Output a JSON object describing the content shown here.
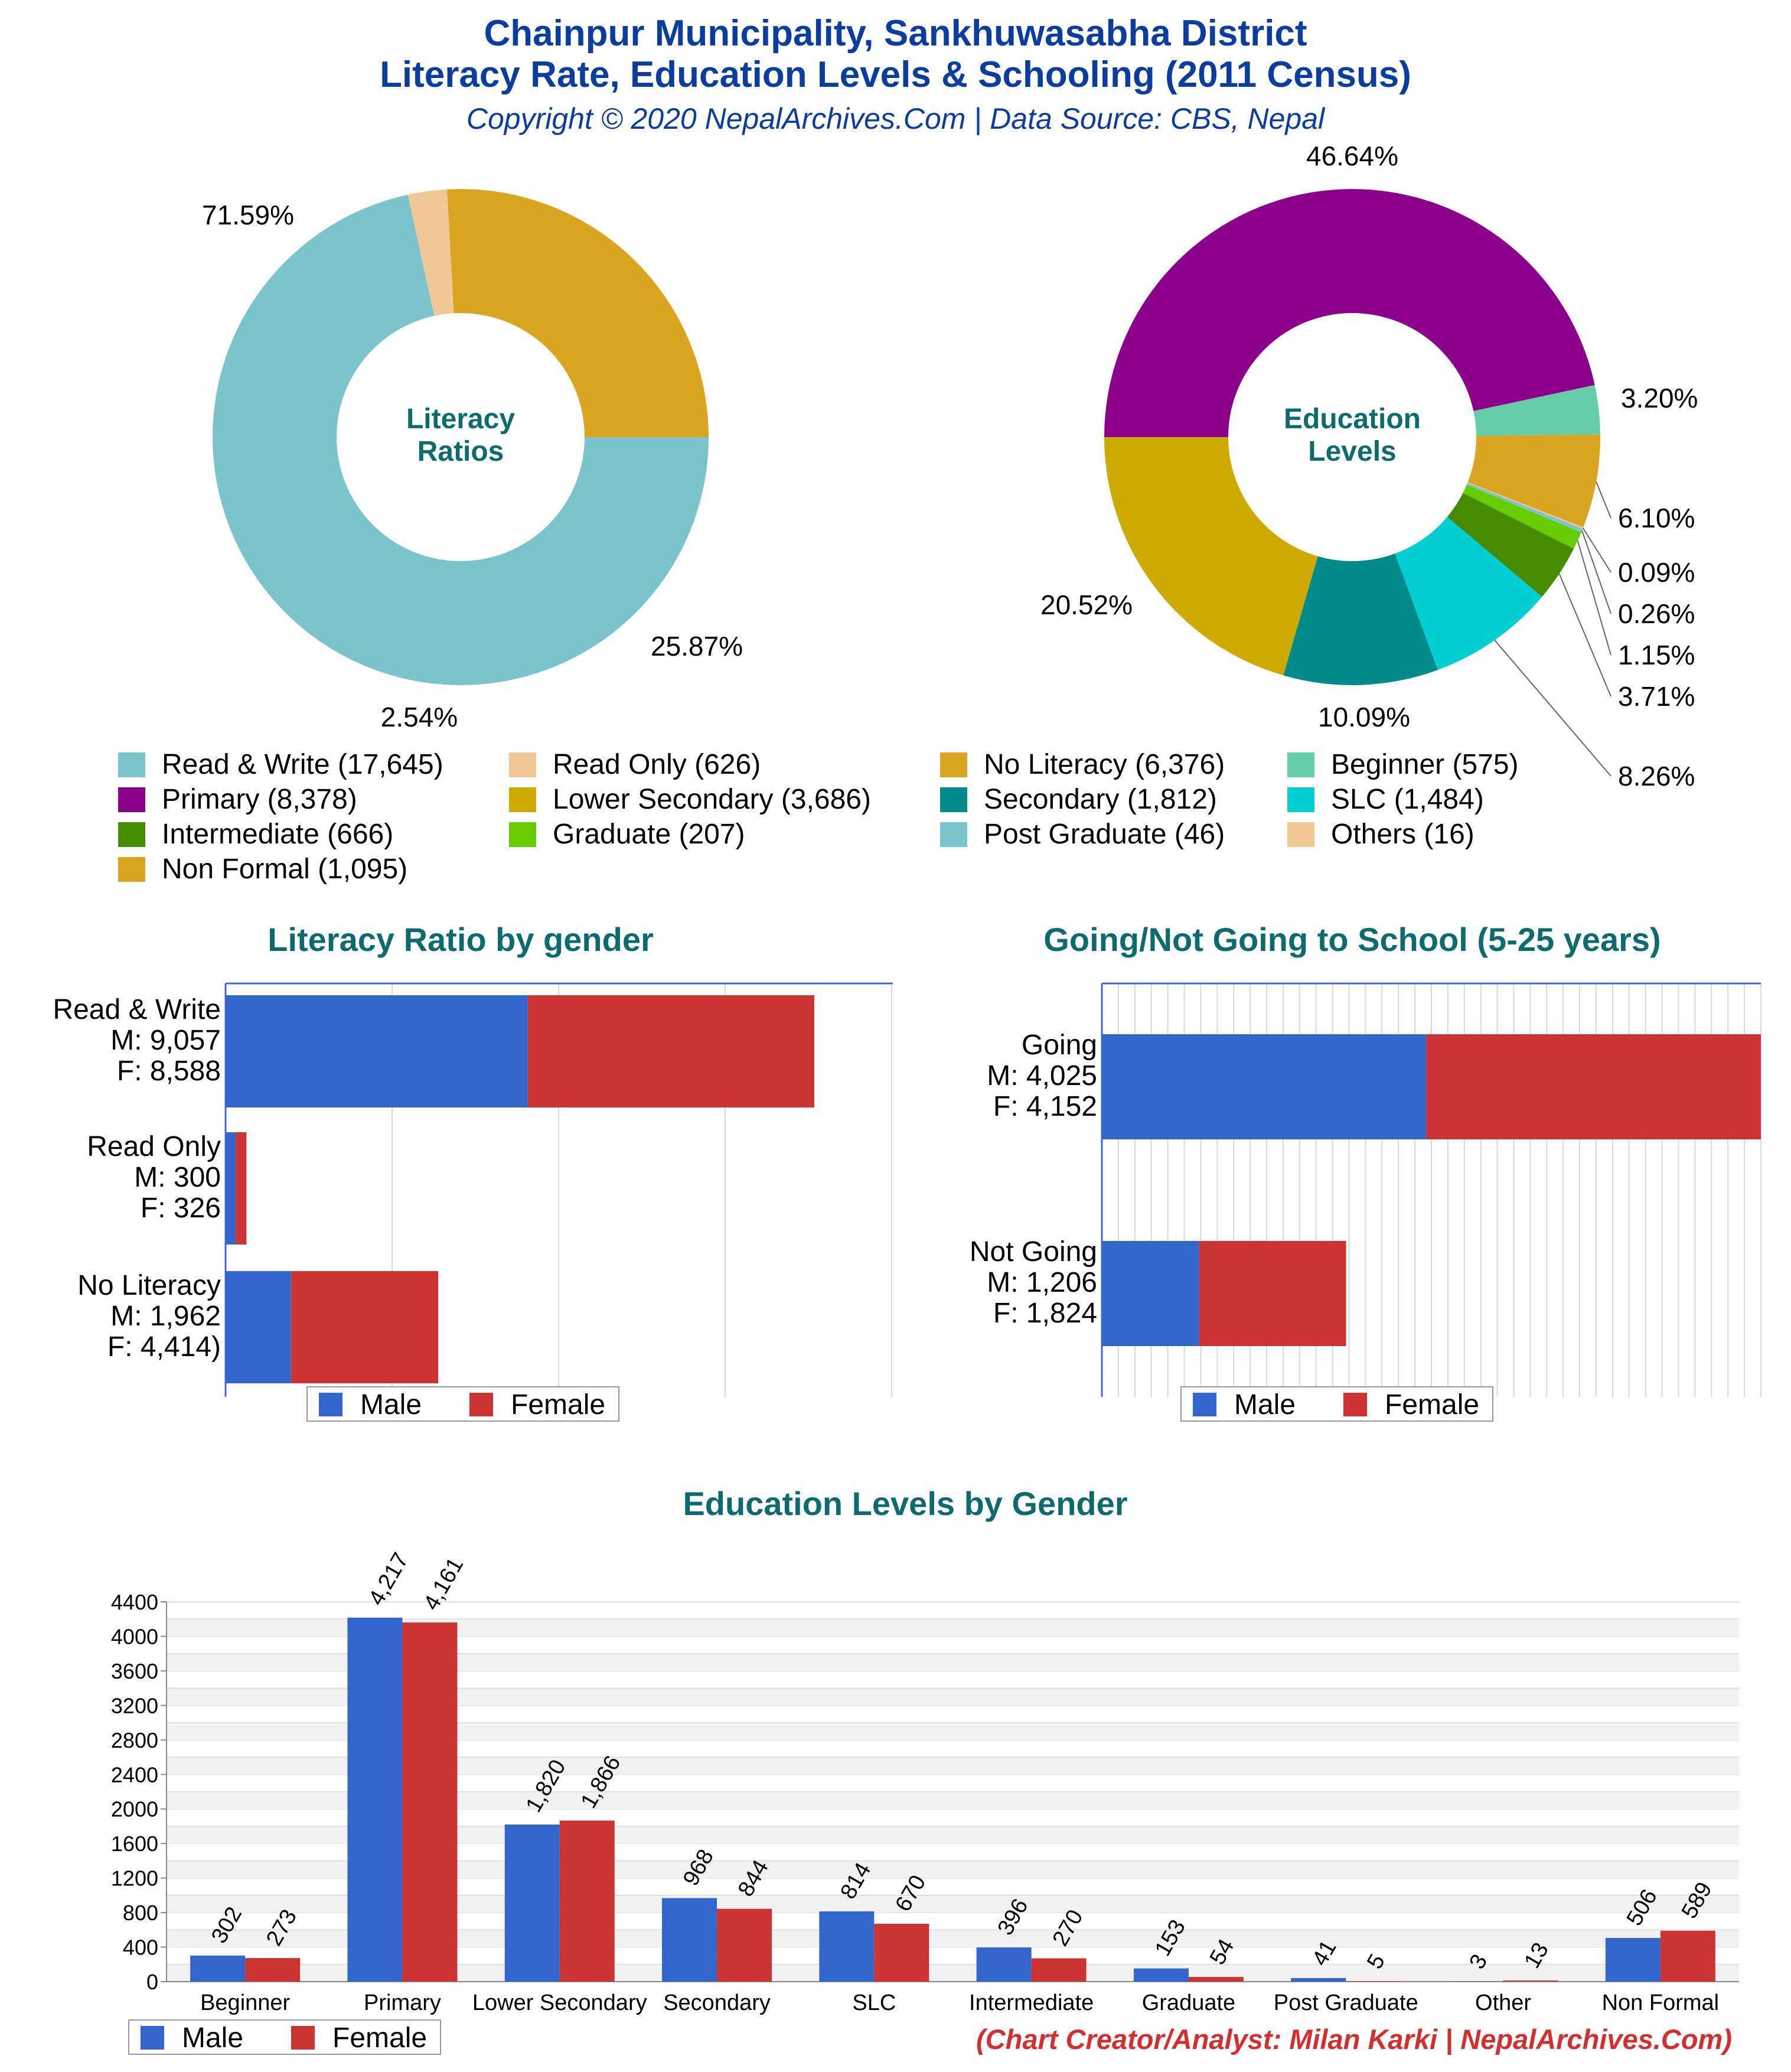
{
  "header": {
    "title_line1": "Chainpur Municipality, Sankhuwasabha District",
    "title_line2": "Literacy Rate, Education Levels & Schooling (2011 Census)",
    "subtitle": "Copyright © 2020 NepalArchives.Com | Data Source: CBS, Nepal"
  },
  "colors": {
    "title": "#0b3d9e",
    "section_title": "#0e6b6b",
    "male": "#3366cc",
    "female": "#cc3333",
    "credit": "#d03030"
  },
  "chart_data": [
    {
      "id": "literacy-ratios",
      "type": "pie",
      "title": "Literacy Ratios",
      "donut": true,
      "slices": [
        {
          "label": "Read & Write",
          "value": 17645,
          "percent_label": "71.59%",
          "color": "#7cc4cc"
        },
        {
          "label": "Read Only",
          "value": 626,
          "percent_label": "2.54%",
          "color": "#f0c896"
        },
        {
          "label": "No Literacy",
          "value": 6376,
          "percent_label": "25.87%",
          "color": "#daa520"
        }
      ]
    },
    {
      "id": "education-levels",
      "type": "pie",
      "title": "Education Levels",
      "donut": true,
      "slices": [
        {
          "label": "Primary",
          "value": 8378,
          "percent_label": "46.64%",
          "color": "#8b008b"
        },
        {
          "label": "Beginner",
          "value": 575,
          "percent_label": "3.20%",
          "color": "#66cdaa"
        },
        {
          "label": "Non Formal",
          "value": 1095,
          "percent_label": "6.10%",
          "color": "#daa520"
        },
        {
          "label": "Others",
          "value": 16,
          "percent_label": "0.09%",
          "color": "#f0c896"
        },
        {
          "label": "Post Graduate",
          "value": 46,
          "percent_label": "0.26%",
          "color": "#7cc4cc"
        },
        {
          "label": "Graduate",
          "value": 207,
          "percent_label": "1.15%",
          "color": "#66cc00"
        },
        {
          "label": "Intermediate",
          "value": 666,
          "percent_label": "3.71%",
          "color": "#458b00"
        },
        {
          "label": "SLC",
          "value": 1484,
          "percent_label": "8.26%",
          "color": "#00ced1"
        },
        {
          "label": "Secondary",
          "value": 1812,
          "percent_label": "10.09%",
          "color": "#008b8b"
        },
        {
          "label": "Lower Secondary",
          "value": 3686,
          "percent_label": "20.52%",
          "color": "#ccaa00"
        }
      ]
    },
    {
      "id": "literacy-by-gender",
      "type": "bar",
      "orientation": "horizontal",
      "stacked": true,
      "title": "Literacy Ratio by gender",
      "categories": [
        [
          "Read & Write",
          "M: 9,057",
          "F: 8,588"
        ],
        [
          "Read Only",
          "M: 300",
          "F: 326"
        ],
        [
          "No Literacy",
          "M: 1,962",
          "F: 4,414)"
        ]
      ],
      "series": [
        {
          "name": "Male",
          "values": [
            9057,
            300,
            1962
          ]
        },
        {
          "name": "Female",
          "values": [
            8588,
            326,
            4414
          ]
        }
      ],
      "xlim": [
        0,
        20000
      ],
      "legend": "bottom"
    },
    {
      "id": "school-attendance",
      "type": "bar",
      "orientation": "horizontal",
      "stacked": true,
      "title": "Going/Not Going to School (5-25 years)",
      "categories": [
        [
          "Going",
          "M: 4,025",
          "F: 4,152"
        ],
        [
          "Not Going",
          "M: 1,206",
          "F: 1,824"
        ]
      ],
      "series": [
        {
          "name": "Male",
          "values": [
            4025,
            1206
          ]
        },
        {
          "name": "Female",
          "values": [
            4152,
            1824
          ]
        }
      ],
      "xlim": [
        0,
        8177
      ],
      "legend": "bottom"
    },
    {
      "id": "education-by-gender",
      "type": "bar",
      "title": "Education Levels by Gender",
      "categories": [
        "Beginner",
        "Primary",
        "Lower Secondary",
        "Secondary",
        "SLC",
        "Intermediate",
        "Graduate",
        "Post Graduate",
        "Other",
        "Non Formal"
      ],
      "series": [
        {
          "name": "Male",
          "values": [
            302,
            4217,
            1820,
            968,
            814,
            396,
            153,
            41,
            3,
            506
          ],
          "labels": [
            "302",
            "4,217",
            "1,820",
            "968",
            "814",
            "396",
            "153",
            "41",
            "3",
            "506"
          ]
        },
        {
          "name": "Female",
          "values": [
            273,
            4161,
            1866,
            844,
            670,
            270,
            54,
            5,
            13,
            589
          ],
          "labels": [
            "273",
            "4,161",
            "1,866",
            "844",
            "670",
            "270",
            "54",
            "5",
            "13",
            "589"
          ]
        }
      ],
      "ylim": [
        0,
        4400
      ],
      "yticks": [
        "0",
        "400",
        "800",
        "1200",
        "1600",
        "2000",
        "2400",
        "2800",
        "3200",
        "3600",
        "4000",
        "4400"
      ],
      "grid": true,
      "legend": "bottom-left"
    }
  ],
  "credit": "(Chart Creator/Analyst: Milan Karki | NepalArchives.Com)"
}
